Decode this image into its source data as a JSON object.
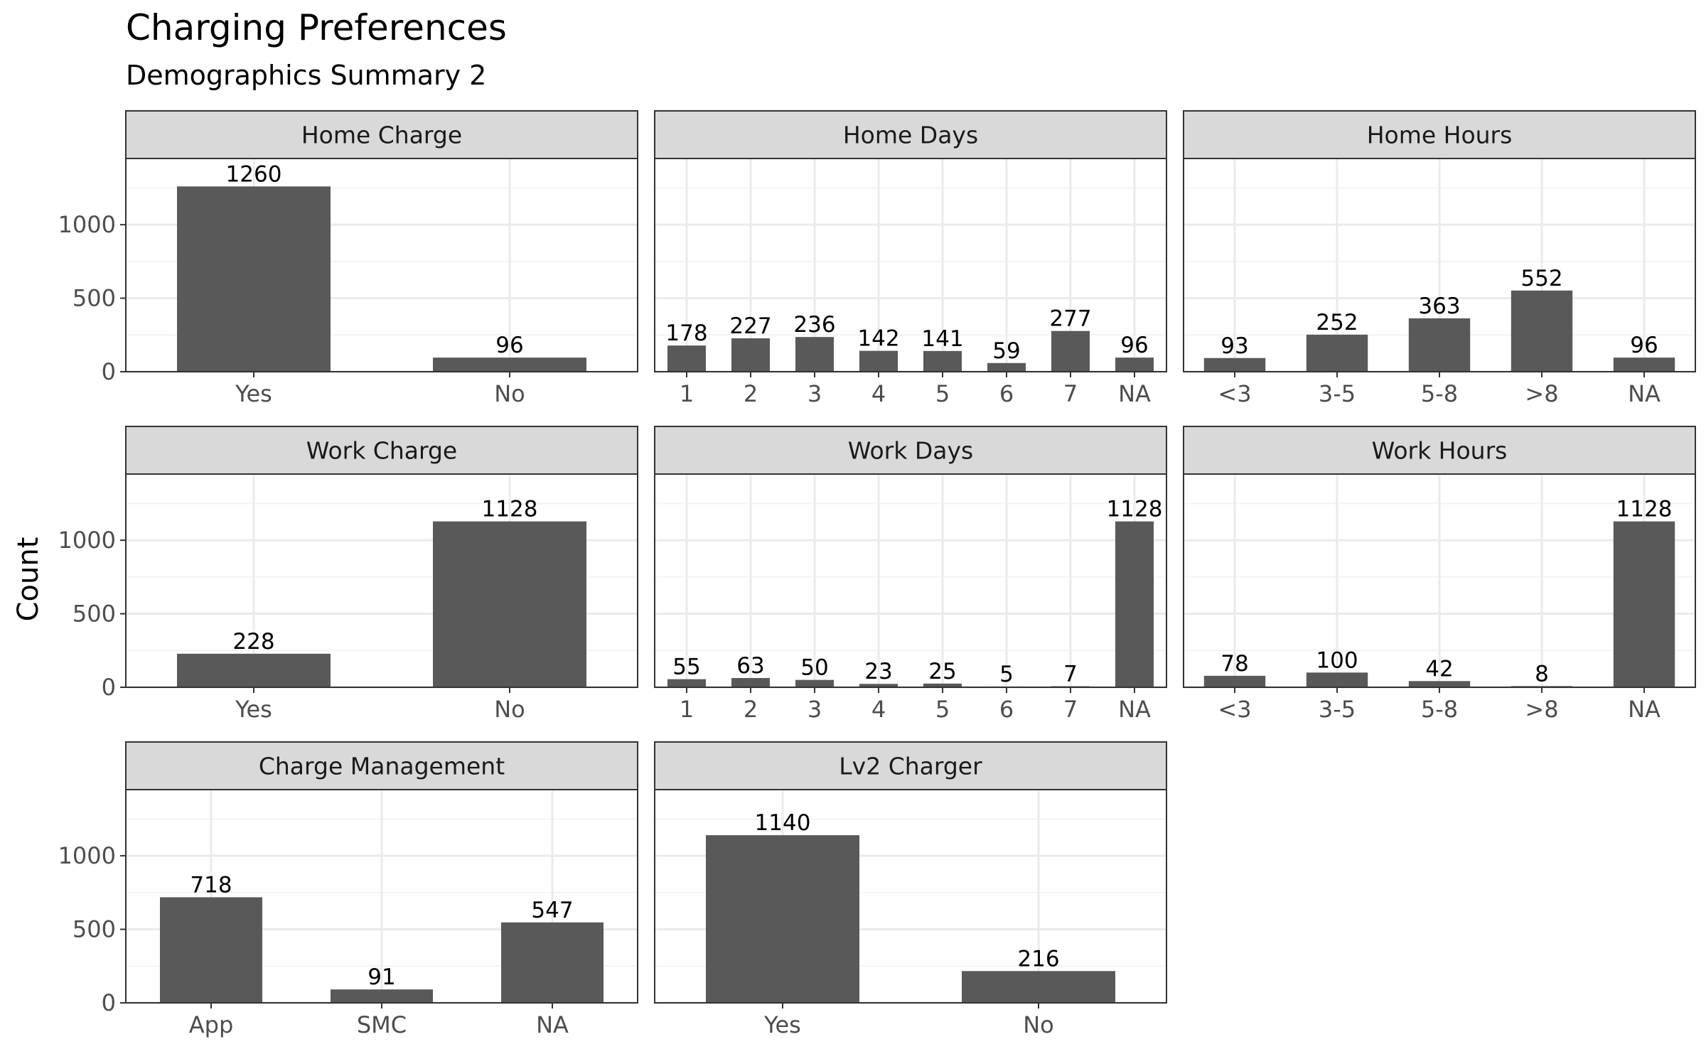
{
  "title": "Charging Preferences",
  "subtitle": "Demographics Summary 2",
  "ylabel": "Count",
  "colors": {
    "bar": "#595959",
    "strip": "#d9d9d9",
    "panel_border": "#333333",
    "grid_major": "#ebebeb",
    "grid_minor": "#f4f4f4"
  },
  "chart_data": [
    {
      "type": "bar",
      "title": "Home Charge",
      "categories": [
        "Yes",
        "No"
      ],
      "values": [
        1260,
        96
      ],
      "ylim": [
        0,
        1450
      ],
      "yticks": [
        0,
        500,
        1000
      ]
    },
    {
      "type": "bar",
      "title": "Home Days",
      "categories": [
        "1",
        "2",
        "3",
        "4",
        "5",
        "6",
        "7",
        "NA"
      ],
      "values": [
        178,
        227,
        236,
        142,
        141,
        59,
        277,
        96
      ],
      "ylim": [
        0,
        1450
      ],
      "yticks": [
        0,
        500,
        1000
      ]
    },
    {
      "type": "bar",
      "title": "Home Hours",
      "categories": [
        "<3",
        "3-5",
        "5-8",
        ">8",
        "NA"
      ],
      "values": [
        93,
        252,
        363,
        552,
        96
      ],
      "ylim": [
        0,
        1450
      ],
      "yticks": [
        0,
        500,
        1000
      ]
    },
    {
      "type": "bar",
      "title": "Work Charge",
      "categories": [
        "Yes",
        "No"
      ],
      "values": [
        228,
        1128
      ],
      "ylim": [
        0,
        1450
      ],
      "yticks": [
        0,
        500,
        1000
      ]
    },
    {
      "type": "bar",
      "title": "Work Days",
      "categories": [
        "1",
        "2",
        "3",
        "4",
        "5",
        "6",
        "7",
        "NA"
      ],
      "values": [
        55,
        63,
        50,
        23,
        25,
        5,
        7,
        1128
      ],
      "ylim": [
        0,
        1450
      ],
      "yticks": [
        0,
        500,
        1000
      ]
    },
    {
      "type": "bar",
      "title": "Work Hours",
      "categories": [
        "<3",
        "3-5",
        "5-8",
        ">8",
        "NA"
      ],
      "values": [
        78,
        100,
        42,
        8,
        1128
      ],
      "ylim": [
        0,
        1450
      ],
      "yticks": [
        0,
        500,
        1000
      ]
    },
    {
      "type": "bar",
      "title": "Charge Management",
      "categories": [
        "App",
        "SMC",
        "NA"
      ],
      "values": [
        718,
        91,
        547
      ],
      "ylim": [
        0,
        1450
      ],
      "yticks": [
        0,
        500,
        1000
      ]
    },
    {
      "type": "bar",
      "title": "Lv2 Charger",
      "categories": [
        "Yes",
        "No"
      ],
      "values": [
        1140,
        216
      ],
      "ylim": [
        0,
        1450
      ],
      "yticks": [
        0,
        500,
        1000
      ]
    }
  ]
}
